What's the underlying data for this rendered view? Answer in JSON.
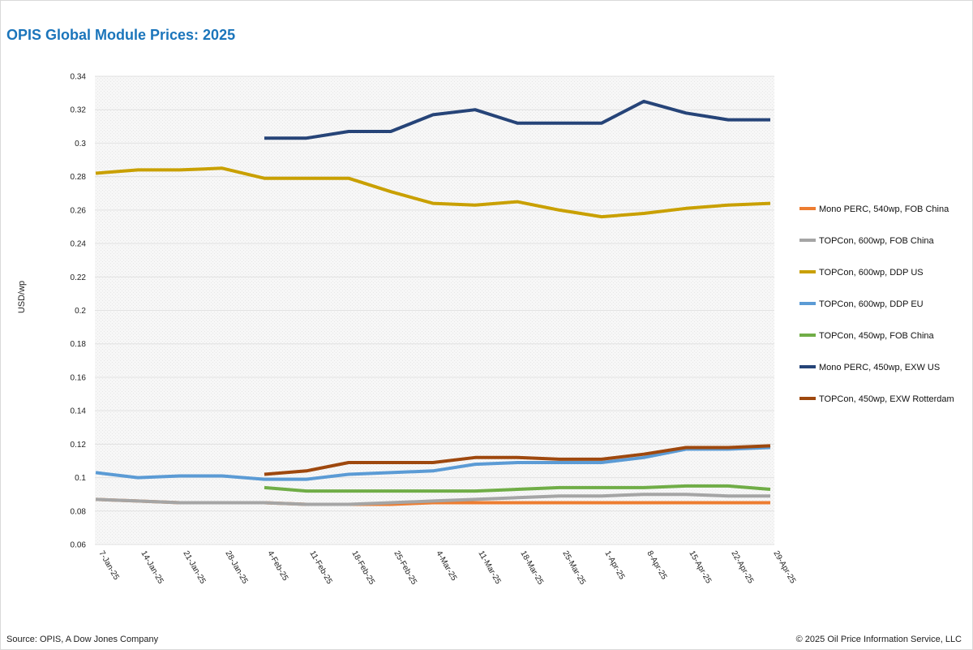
{
  "title": "OPIS Global Module Prices: 2025",
  "footer": {
    "source": "Source: OPIS, A Dow Jones Company",
    "copyright": "© 2025 Oil Price Information Service, LLC"
  },
  "chart_data": {
    "type": "line",
    "title": "OPIS Global Module Prices: 2025",
    "xlabel": "",
    "ylabel": "USD/wp",
    "ylim": [
      0.06,
      0.34
    ],
    "y_ticks": [
      0.06,
      0.08,
      0.1,
      0.12,
      0.14,
      0.16,
      0.18,
      0.2,
      0.22,
      0.24,
      0.26,
      0.28,
      0.3,
      0.32,
      0.34
    ],
    "grid": true,
    "legend_position": "right",
    "categories": [
      "7-Jan-25",
      "14-Jan-25",
      "21-Jan-25",
      "28-Jan-25",
      "4-Feb-25",
      "11-Feb-25",
      "18-Feb-25",
      "25-Feb-25",
      "4-Mar-25",
      "11-Mar-25",
      "18-Mar-25",
      "25-Mar-25",
      "1-Apr-25",
      "8-Apr-25",
      "15-Apr-25",
      "22-Apr-25",
      "29-Apr-25"
    ],
    "series": [
      {
        "name": "Mono PERC, 540wp, FOB China",
        "color": "#ed7d31",
        "values": [
          0.087,
          0.086,
          0.085,
          0.085,
          0.085,
          0.084,
          0.084,
          0.084,
          0.085,
          0.085,
          0.085,
          0.085,
          0.085,
          0.085,
          0.085,
          0.085,
          0.085
        ]
      },
      {
        "name": "TOPCon, 600wp, FOB China",
        "color": "#a5a5a5",
        "values": [
          0.087,
          0.086,
          0.085,
          0.085,
          0.085,
          0.084,
          0.084,
          0.085,
          0.086,
          0.087,
          0.088,
          0.089,
          0.089,
          0.09,
          0.09,
          0.089,
          0.089
        ]
      },
      {
        "name": "TOPCon, 600wp, DDP US",
        "color": "#c9a000",
        "values": [
          0.282,
          0.284,
          0.284,
          0.285,
          0.279,
          0.279,
          0.279,
          0.271,
          0.264,
          0.263,
          0.265,
          0.26,
          0.256,
          0.258,
          0.261,
          0.263,
          0.264
        ]
      },
      {
        "name": "TOPCon, 600wp, DDP EU",
        "color": "#5b9bd5",
        "values": [
          0.103,
          0.1,
          0.101,
          0.101,
          0.099,
          0.099,
          0.102,
          0.103,
          0.104,
          0.108,
          0.109,
          0.109,
          0.109,
          0.112,
          0.117,
          0.117,
          0.118
        ]
      },
      {
        "name": "TOPCon, 450wp, FOB China",
        "color": "#70ad47",
        "values": [
          null,
          null,
          null,
          null,
          0.094,
          0.092,
          0.092,
          0.092,
          0.092,
          0.092,
          0.093,
          0.094,
          0.094,
          0.094,
          0.095,
          0.095,
          0.093
        ]
      },
      {
        "name": "Mono PERC, 450wp, EXW US",
        "color": "#264478",
        "values": [
          null,
          null,
          null,
          null,
          0.303,
          0.303,
          0.307,
          0.307,
          0.317,
          0.32,
          0.312,
          0.312,
          0.312,
          0.325,
          0.318,
          0.314,
          0.314
        ]
      },
      {
        "name": "TOPCon, 450wp, EXW Rotterdam",
        "color": "#9e480e",
        "values": [
          null,
          null,
          null,
          null,
          0.102,
          0.104,
          0.109,
          0.109,
          0.109,
          0.112,
          0.112,
          0.111,
          0.111,
          0.114,
          0.118,
          0.118,
          0.119
        ]
      }
    ]
  }
}
